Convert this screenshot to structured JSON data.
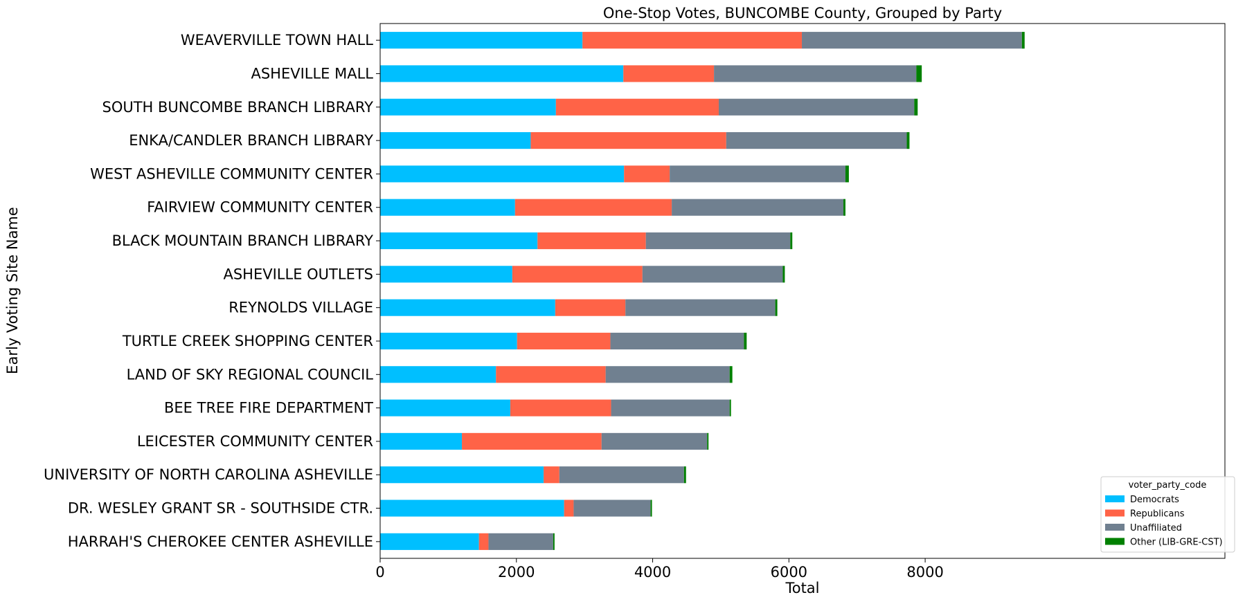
{
  "chart_data": {
    "type": "bar",
    "orientation": "horizontal",
    "stacked": true,
    "title": "One-Stop Votes, BUNCOMBE County, Grouped by Party",
    "xlabel": "Total",
    "ylabel": "Early Voting Site Name",
    "xlim": [
      0,
      12400
    ],
    "xticks": [
      0,
      2000,
      4000,
      6000,
      8000
    ],
    "xtick_labels": [
      "0",
      "2000",
      "4000",
      "6000",
      "8000"
    ],
    "grid": false,
    "legend": {
      "title": "voter_party_code",
      "placement": "lower-right"
    },
    "categories": [
      "WEAVERVILLE TOWN HALL",
      "ASHEVILLE MALL",
      "SOUTH BUNCOMBE BRANCH LIBRARY",
      "ENKA/CANDLER BRANCH LIBRARY",
      "WEST ASHEVILLE COMMUNITY CENTER",
      "FAIRVIEW COMMUNITY CENTER",
      "BLACK MOUNTAIN BRANCH LIBRARY",
      "ASHEVILLE OUTLETS",
      "REYNOLDS VILLAGE",
      "TURTLE CREEK SHOPPING CENTER",
      "LAND OF SKY REGIONAL COUNCIL",
      "BEE TREE FIRE DEPARTMENT",
      "LEICESTER COMMUNITY CENTER",
      "UNIVERSITY OF NORTH CAROLINA ASHEVILLE",
      "DR. WESLEY GRANT SR - SOUTHSIDE CTR.",
      "HARRAH'S CHEROKEE CENTER ASHEVILLE"
    ],
    "series": [
      {
        "name": "Democrats",
        "color": "#00bfff",
        "values": [
          2970,
          3570,
          2580,
          2210,
          3580,
          1980,
          2310,
          1940,
          2570,
          2010,
          1700,
          1910,
          1200,
          2400,
          2700,
          1450
        ]
      },
      {
        "name": "Republicans",
        "color": "#ff6347",
        "values": [
          3220,
          1330,
          2390,
          2870,
          670,
          2300,
          1590,
          1910,
          1030,
          1370,
          1610,
          1480,
          2050,
          230,
          140,
          140
        ]
      },
      {
        "name": "Unaffiliated",
        "color": "#708090",
        "values": [
          3230,
          2970,
          2870,
          2650,
          2580,
          2520,
          2120,
          2060,
          2200,
          1960,
          1820,
          1740,
          1550,
          1830,
          1130,
          950
        ]
      },
      {
        "name": "Other (LIB-GRE-CST)",
        "color": "#008000",
        "values": [
          40,
          80,
          50,
          40,
          50,
          30,
          30,
          30,
          30,
          40,
          40,
          20,
          20,
          30,
          20,
          20
        ]
      }
    ]
  }
}
